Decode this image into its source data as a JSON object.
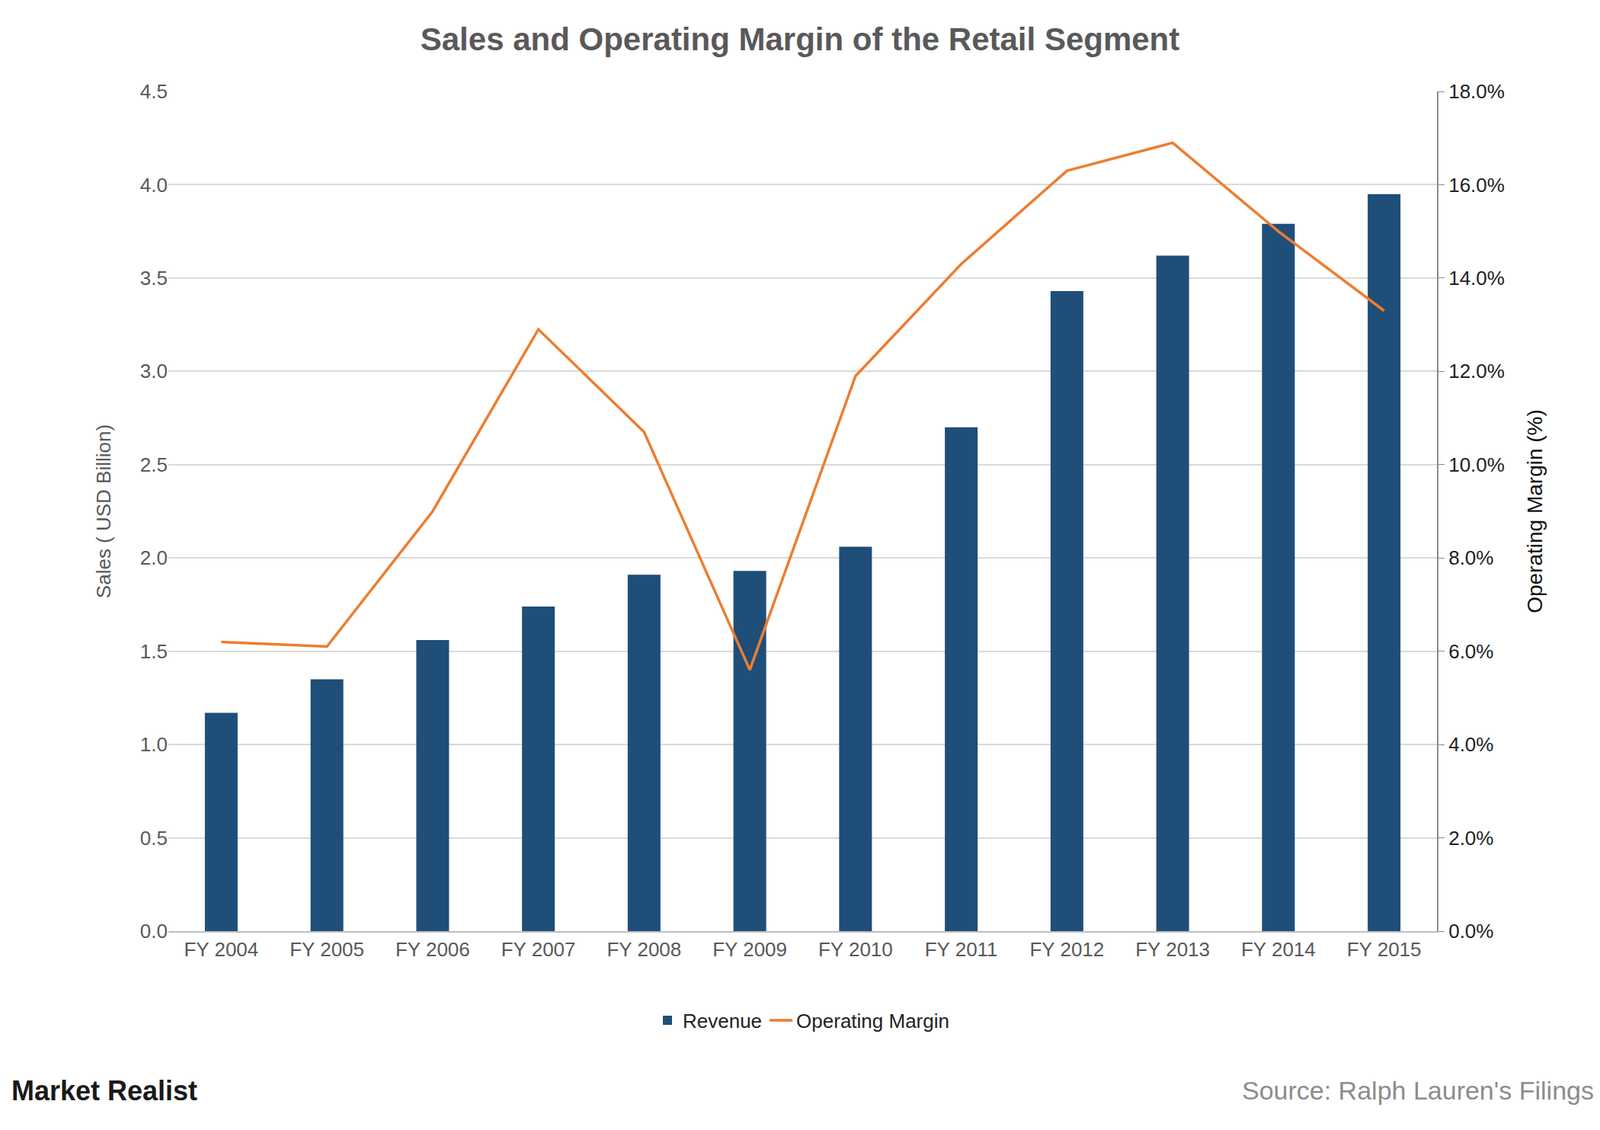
{
  "chart_data": {
    "type": "bar",
    "title": "Sales and Operating Margin of the Retail Segment",
    "y_label": "Sales ( USD Billion)",
    "y2_label": "Operating Margin (%)",
    "categories": [
      "FY 2004",
      "FY 2005",
      "FY 2006",
      "FY 2007",
      "FY 2008",
      "FY 2009",
      "FY 2010",
      "FY 2011",
      "FY 2012",
      "FY 2013",
      "FY 2014",
      "FY 2015"
    ],
    "series": [
      {
        "name": "Revenue",
        "type": "bar",
        "color": "#1f4e79",
        "values": [
          1.17,
          1.35,
          1.56,
          1.74,
          1.91,
          1.93,
          2.06,
          2.7,
          3.43,
          3.62,
          3.79,
          3.95
        ]
      },
      {
        "name": "Operating Margin",
        "type": "line",
        "color": "#ed7d31",
        "axis": "y2",
        "values": [
          6.2,
          6.1,
          9.0,
          12.9,
          10.7,
          5.6,
          11.9,
          14.3,
          16.3,
          16.9,
          15.0,
          13.3
        ]
      }
    ],
    "ylim": [
      0,
      4.5
    ],
    "yticks": [
      {
        "value": 0,
        "label": "0.0"
      },
      0.5,
      {
        "value": 1,
        "label": "1.0"
      },
      1.5,
      {
        "value": 2,
        "label": "2.0"
      },
      2.5,
      {
        "value": 3,
        "label": "3.0"
      },
      3.5,
      {
        "value": 4,
        "label": "4.0"
      },
      4.5
    ],
    "y2lim": [
      0,
      18
    ],
    "y2ticks": [
      {
        "value": 0,
        "label": "0.0%"
      },
      {
        "value": 2,
        "label": "2.0%"
      },
      {
        "value": 4,
        "label": "4.0%"
      },
      {
        "value": 6,
        "label": "6.0%"
      },
      {
        "value": 8,
        "label": "8.0%"
      },
      {
        "value": 10,
        "label": "10.0%"
      },
      {
        "value": 12,
        "label": "12.0%"
      },
      {
        "value": 14,
        "label": "14.0%"
      },
      {
        "value": 16,
        "label": "16.0%"
      },
      {
        "value": 18,
        "label": "18.0%"
      }
    ],
    "grid": true,
    "legend": "bottom",
    "annotations": [
      "Market Realist",
      "Source: Ralph Lauren's Filings"
    ]
  }
}
